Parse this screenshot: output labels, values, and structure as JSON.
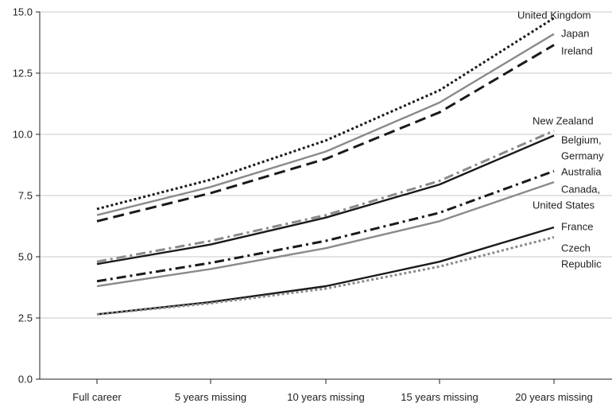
{
  "chart_data": {
    "type": "line",
    "categories": [
      "Full career",
      "5 years missing",
      "10 years missing",
      "15 years missing",
      "20 years missing"
    ],
    "ylim": [
      0,
      15
    ],
    "yticks": [
      "0.0",
      "2.5",
      "5.0",
      "7.5",
      "10.0",
      "12.5",
      "15.0"
    ],
    "grid": true,
    "series": [
      {
        "name": "United Kingdom",
        "label_lines": [
          "United Kingdom"
        ],
        "values": [
          6.95,
          8.15,
          9.75,
          11.8,
          14.75
        ],
        "color": "#1a1a1a",
        "style": "dotted"
      },
      {
        "name": "Japan",
        "label_lines": [
          "Japan"
        ],
        "values": [
          6.7,
          7.85,
          9.3,
          11.3,
          14.1
        ],
        "color": "#8a8a8a",
        "style": "solid"
      },
      {
        "name": "Ireland",
        "label_lines": [
          "Ireland"
        ],
        "values": [
          6.45,
          7.6,
          9.0,
          10.9,
          13.65
        ],
        "color": "#1a1a1a",
        "style": "dashed"
      },
      {
        "name": "New Zealand",
        "label_lines": [
          "New Zealand"
        ],
        "values": [
          4.8,
          5.65,
          6.7,
          8.1,
          10.15
        ],
        "color": "#8a8a8a",
        "style": "dashdot"
      },
      {
        "name": "Belgium, Germany",
        "label_lines": [
          "Belgium,",
          "Germany"
        ],
        "values": [
          4.7,
          5.5,
          6.6,
          7.95,
          9.95
        ],
        "color": "#1a1a1a",
        "style": "solid"
      },
      {
        "name": "Australia",
        "label_lines": [
          "Australia"
        ],
        "values": [
          4.0,
          4.75,
          5.65,
          6.8,
          8.5
        ],
        "color": "#1a1a1a",
        "style": "dashdot"
      },
      {
        "name": "Canada, United States",
        "label_lines": [
          "Canada,",
          "United States"
        ],
        "values": [
          3.8,
          4.5,
          5.35,
          6.45,
          8.05
        ],
        "color": "#8a8a8a",
        "style": "solid"
      },
      {
        "name": "France",
        "label_lines": [
          "France"
        ],
        "values": [
          2.65,
          3.15,
          3.8,
          4.8,
          6.2
        ],
        "color": "#1a1a1a",
        "style": "solid"
      },
      {
        "name": "Czech Republic",
        "label_lines": [
          "Czech",
          "Republic"
        ],
        "values": [
          2.65,
          3.1,
          3.7,
          4.6,
          5.8
        ],
        "color": "#8a8a8a",
        "style": "dotted"
      }
    ]
  }
}
